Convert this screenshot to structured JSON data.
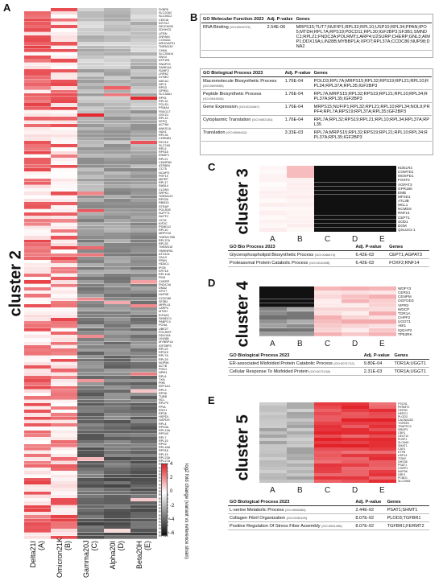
{
  "panels": {
    "a": "A",
    "b": "B",
    "c": "C",
    "d": "D",
    "e": "E"
  },
  "columns": [
    {
      "name": "Delta21I",
      "letter": "(A)"
    },
    {
      "name": "Omicron21K",
      "letter": "(B)"
    },
    {
      "name": "Gamma20J",
      "letter": "(C)"
    },
    {
      "name": "Alpha20I",
      "letter": "(D)"
    },
    {
      "name": "Beta20H",
      "letter": "(E)"
    }
  ],
  "cluster2": {
    "title": "cluster 2",
    "genes": [
      "FKBP8",
      "SLC20A2",
      "SLC35C2",
      "CDK18",
      "INTS12",
      "SELENON",
      "ZDHHC5",
      "UTRN",
      "ZNF860",
      "COX6A1",
      "ARHGAP31",
      "TMEM130",
      "CHML",
      "SLC39A14",
      "SNX4",
      "ATP1B1",
      "SNAP23",
      "SAMD4A",
      "SUMF2",
      "LRRK2",
      "SYNE2",
      "ABCA1",
      "NPY1",
      "RPS3",
      "GPR61",
      "SLC38A1",
      "RPS1",
      "RPL32",
      "POLD1",
      "PSMA4",
      "FBXO17",
      "GSTZ1",
      "RPL13",
      "SFPQ",
      "ACTN4",
      "ANKS1A",
      "HAX1",
      "RPL34",
      "CHRNB1",
      "PEX19",
      "SLC7A5",
      "RPL5",
      "RPS15",
      "ERMP1",
      "RPL21",
      "CHMP4B",
      "ATP8B4",
      "CCT5",
      "NCAPG",
      "PHF19",
      "MIPEP",
      "RPL17",
      "RAB14",
      "CLDN3",
      "SRPK1",
      "TMEM129",
      "RPS26",
      "RBM15",
      "STRAP",
      "POLR2E",
      "SUPT7L",
      "NUTF2",
      "YKT6",
      "KIF2C",
      "PSMD12",
      "RPL10",
      "MRPS15",
      "TMEM178B",
      "RPL37A",
      "RPL35",
      "TMEM116",
      "HNRNPA1",
      "ATG101",
      "GNL3",
      "PPAN",
      "HDAC1",
      "IPO5",
      "KRT18",
      "RPL10A",
      "PKM",
      "CHERP",
      "FNDC3A",
      "DNA2",
      "XPOT",
      "NUP98",
      "CCDC86",
      "SF3B1",
      "MRPL41",
      "LARP4",
      "MTDH",
      "EIF4A3",
      "SMNDC1",
      "PABPC4",
      "PCNA",
      "UBE2T",
      "POLRMT",
      "DDX19A",
      "LIN28B",
      "MYBBP1A",
      "IGF2BP3",
      "RPL22",
      "RPS19",
      "RPL7A",
      "RPL29",
      "NOP56",
      "ACTB",
      "PGK1",
      "NPM1",
      "RPL6",
      "TXN",
      "PHB",
      "EEF1A1",
      "RPL3",
      "RPS8",
      "TUBB",
      "NCL",
      "RPLP0",
      "PPIA",
      "ENO1",
      "RPS6",
      "HSPD1",
      "GAPDH",
      "RPL4",
      "RPS3A",
      "RPL13A",
      "RPS4X",
      "RPL7",
      "RPL15",
      "RPS2",
      "RPL18A",
      "RPS18",
      "RPL19",
      "RPL23A",
      "RPL27A",
      "RPL30",
      "RPL36",
      "RPL38",
      "RPLP1",
      "RPLP2",
      "RPS5",
      "RPS7",
      "RPS9",
      "RPS11",
      "RPS13",
      "RPS14",
      "RPS16",
      "RPS20",
      "RPS23",
      "RPS24",
      "RPS25",
      "RPS27A",
      "RPS28",
      "RPS29",
      "NUS",
      "RPL10L",
      "RPS21"
    ]
  },
  "legend": {
    "title": "log2 fold change (variant vs reference strain)",
    "ticks": [
      "4",
      "2",
      "0",
      "-2",
      "-4",
      "-6"
    ]
  },
  "goB": {
    "mf": {
      "header": [
        "GO Molecular Function 2023",
        "Adj. P-value",
        "Genes"
      ],
      "rows": [
        {
          "term": "RNA Binding",
          "id": "(GO:0003723)",
          "p": "2.54E-06",
          "genes": "MRPS15;TUT7;NUFIP1;RPL32;RPL10;USP10;RPL34;PPAN;IPO5;MTDH;RPL7A;RPS19;PDCD11;RPL30;IGF2BP3;SF3B1;SMNDC1;RPL21;FNDC3A;POLRMT;LARP4;U2SURP;CHERP;GNL3;AIMP1;DDX19A;LIN28B;MYBBP1A;XPOT;RPL37A;CCDC86;NUP98;DNA2"
        }
      ]
    },
    "bp": {
      "header": [
        "GO Biological Process 2023",
        "Adj. P-value",
        "Genes"
      ],
      "rows": [
        {
          "term": "Macromolecule Biosynthetic Process",
          "id": "(GO:0009059)",
          "p": "1.76E-04",
          "genes": "POLD3;RPL7A;MRPS15;RPL32;RPS19;RPL21;RPL10;RPL34;RPL37A;RPL35;IGF2BP3"
        },
        {
          "term": "Peptide Biosynthetic Process",
          "id": "(GO:0043043)",
          "p": "1.76E-04",
          "genes": "RPL7A;MRPS15;RPL32;RPS19;RPL21;RPL10;RPL34;RPL37A;RPL35;IGF2BP3"
        },
        {
          "term": "Gene Expression",
          "id": "(GO:0010467)",
          "p": "1.76E-04",
          "genes": "MRPS15;NUFIP1;RPL32;RPL21;RPL10;RPL34;NOL9;PRPF4;RPL7A;RPS19;RPL37A;RPL35;IGF2BP3"
        },
        {
          "term": "Cytoplasmic Translation",
          "id": "(GO:0002181)",
          "p": "1.76E-04",
          "genes": "RPL7A;RPL32;RPS19;RPL21;RPL10;RPL34;RPL37A;RPL35"
        },
        {
          "term": "Translation",
          "id": "(GO:0006412)",
          "p": "3.33E-03",
          "genes": "RPL7A;MRPS15;RPL32;RPS19;RPL21;RPL10;RPL34;RPL37A;RPL35;IGF2BP3"
        }
      ]
    }
  },
  "cluster3": {
    "title": "cluster 3",
    "genes": [
      "KDELR2",
      "COMTD1",
      "MOSPD1",
      "FOXF2",
      "AGPAT3",
      "GPR180",
      "EMB",
      "MFSD1",
      "ATL3B",
      "MCL1",
      "NCMDS",
      "RNF14",
      "CEPT1",
      "SOD1",
      "DOM",
      "QSUJ41-1"
    ],
    "x_labels": [
      "A",
      "B",
      "C",
      "D",
      "E"
    ],
    "go": {
      "header": [
        "GO Bio Process 2023",
        "Adj. P-value",
        "Genes"
      ],
      "rows": [
        {
          "term": "Glycerophospholipid Biosynthetic Process",
          "id": "(GO:0046474)",
          "p": "6.42E-03",
          "genes": "CEPT1;AGPAT3"
        },
        {
          "term": "Proteasomal Protein Catabolic Process",
          "id": "(GO:0010498)",
          "p": "6.42E-03",
          "genes": "FOXF2;RNF14"
        }
      ]
    }
  },
  "cluster4": {
    "title": "cluster 4",
    "genes": [
      "WDFY3",
      "CERS1",
      "CENPM",
      "OGFOD3",
      "VIPR2",
      "WDCP",
      "TOR1A",
      "CHPF2",
      "UGGT1",
      "ABI1",
      "IQGAP2",
      "TP53RK"
    ],
    "x_labels": [
      "A",
      "B",
      "C",
      "D",
      "E"
    ],
    "go": {
      "header": [
        "GO Biological Process 2023",
        "Adj. P-value",
        "Genes"
      ],
      "rows": [
        {
          "term": "ER-associated Misfolded Protein Catabolic Process",
          "id": "(GO:0071712)",
          "p": "9.80E-04",
          "genes": "TOR1A;UGGT1"
        },
        {
          "term": "Cellular Response To Misfolded Protein",
          "id": "(GO:0071218)",
          "p": "2.31E-03",
          "genes": "TOR1A;UGGT1"
        }
      ]
    }
  },
  "cluster5": {
    "title": "cluster 5",
    "genes": [
      "FSCN1",
      "FERMT2",
      "CERS2",
      "HERC1",
      "PLOD3",
      "CACNA2D2",
      "TGFBR1",
      "TRAPPC4",
      "RRAP3",
      "CBX1",
      "CELF12",
      "PLBP1",
      "SLC6A5",
      "SMAT1",
      "CAV1",
      "ETFB",
      "USP14",
      "TGM2",
      "DHX38",
      "PSAT1",
      "CGRP1",
      "NUP98",
      "GRF1",
      "PCBD1",
      "SLC29A5"
    ],
    "x_labels": [
      "A",
      "B",
      "C",
      "D",
      "E"
    ],
    "go": {
      "header": [
        "GO Biological Process 2023",
        "Adj. P-value",
        "Genes"
      ],
      "rows": [
        {
          "term": "L-serine Metabolic Process",
          "id": "(GO:0006563)",
          "p": "2.44E-02",
          "genes": "PSAT1;SHMT1"
        },
        {
          "term": "Collagen Fibril Organization",
          "id": "(GO:0030199)",
          "p": "8.07E-02",
          "genes": "PLOD3;TGFBR1"
        },
        {
          "term": "Positive Regulation Of Stress Fiber Assembly",
          "id": "(GO:0051496)",
          "p": "8.07E-02",
          "genes": "TGFBR1;FERMT2"
        }
      ]
    }
  },
  "colors": {
    "pos_max": "#e21f26",
    "neutral": "#ffffff",
    "neg_max": "#111111",
    "box_border": "#aaaaaa"
  }
}
